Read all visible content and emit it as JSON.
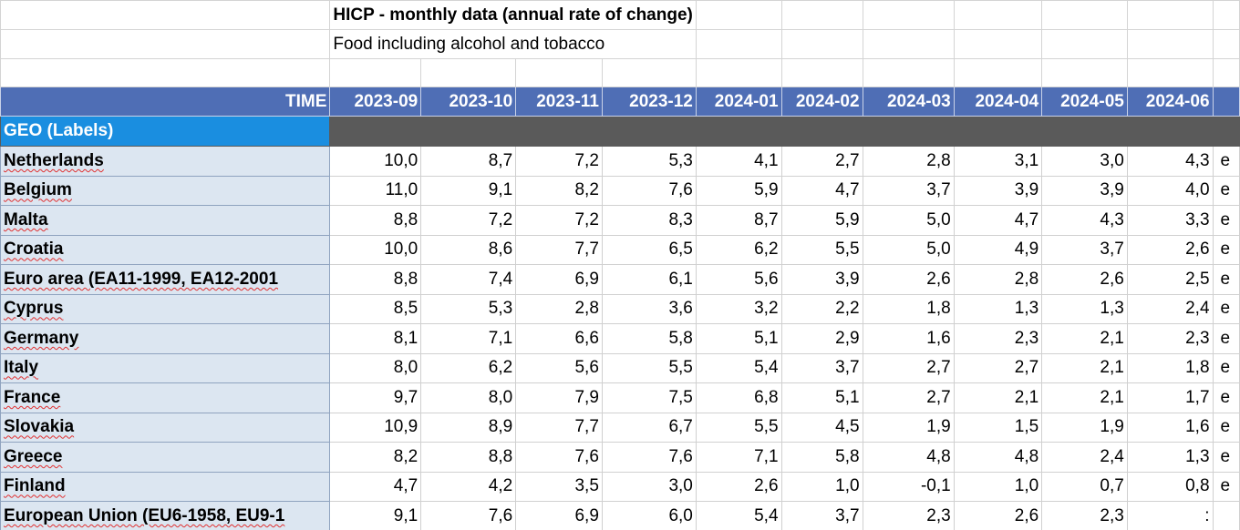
{
  "title": "HICP - monthly data (annual rate of change)",
  "subtitle": "Food including alcohol and tobacco",
  "table": {
    "corner": "TIME",
    "columns": [
      "2023-09",
      "2023-10",
      "2023-11",
      "2023-12",
      "2024-01",
      "2024-02",
      "2024-03",
      "2024-04",
      "2024-05",
      "2024-06"
    ],
    "row_header": "GEO (Labels)",
    "rows": [
      {
        "label": "Netherlands",
        "values": [
          "10,0",
          "8,7",
          "7,2",
          "5,3",
          "4,1",
          "2,7",
          "2,8",
          "3,1",
          "3,0",
          "4,3"
        ],
        "flag": "e"
      },
      {
        "label": "Belgium",
        "values": [
          "11,0",
          "9,1",
          "8,2",
          "7,6",
          "5,9",
          "4,7",
          "3,7",
          "3,9",
          "3,9",
          "4,0"
        ],
        "flag": "e"
      },
      {
        "label": "Malta",
        "values": [
          "8,8",
          "7,2",
          "7,2",
          "8,3",
          "8,7",
          "5,9",
          "5,0",
          "4,7",
          "4,3",
          "3,3"
        ],
        "flag": "e"
      },
      {
        "label": "Croatia",
        "values": [
          "10,0",
          "8,6",
          "7,7",
          "6,5",
          "6,2",
          "5,5",
          "5,0",
          "4,9",
          "3,7",
          "2,6"
        ],
        "flag": "e"
      },
      {
        "label": "Euro area (EA11-1999, EA12-2001",
        "values": [
          "8,8",
          "7,4",
          "6,9",
          "6,1",
          "5,6",
          "3,9",
          "2,6",
          "2,8",
          "2,6",
          "2,5"
        ],
        "flag": "e"
      },
      {
        "label": "Cyprus",
        "values": [
          "8,5",
          "5,3",
          "2,8",
          "3,6",
          "3,2",
          "2,2",
          "1,8",
          "1,3",
          "1,3",
          "2,4"
        ],
        "flag": "e"
      },
      {
        "label": "Germany",
        "values": [
          "8,1",
          "7,1",
          "6,6",
          "5,8",
          "5,1",
          "2,9",
          "1,6",
          "2,3",
          "2,1",
          "2,3"
        ],
        "flag": "e"
      },
      {
        "label": "Italy",
        "values": [
          "8,0",
          "6,2",
          "5,6",
          "5,5",
          "5,4",
          "3,7",
          "2,7",
          "2,7",
          "2,1",
          "1,8"
        ],
        "flag": "e"
      },
      {
        "label": "France",
        "values": [
          "9,7",
          "8,0",
          "7,9",
          "7,5",
          "6,8",
          "5,1",
          "2,7",
          "2,1",
          "2,1",
          "1,7"
        ],
        "flag": "e"
      },
      {
        "label": "Slovakia",
        "values": [
          "10,9",
          "8,9",
          "7,7",
          "6,7",
          "5,5",
          "4,5",
          "1,9",
          "1,5",
          "1,9",
          "1,6"
        ],
        "flag": "e"
      },
      {
        "label": "Greece",
        "values": [
          "8,2",
          "8,8",
          "7,6",
          "7,6",
          "7,1",
          "5,8",
          "4,8",
          "4,8",
          "2,4",
          "1,3"
        ],
        "flag": "e"
      },
      {
        "label": "Finland",
        "values": [
          "4,7",
          "4,2",
          "3,5",
          "3,0",
          "2,6",
          "1,0",
          "-0,1",
          "1,0",
          "0,7",
          "0,8"
        ],
        "flag": "e"
      },
      {
        "label": "European Union (EU6-1958, EU9-1",
        "values": [
          "9,1",
          "7,6",
          "6,9",
          "6,0",
          "5,4",
          "3,7",
          "2,3",
          "2,6",
          "2,3",
          ":"
        ]
      }
    ]
  }
}
